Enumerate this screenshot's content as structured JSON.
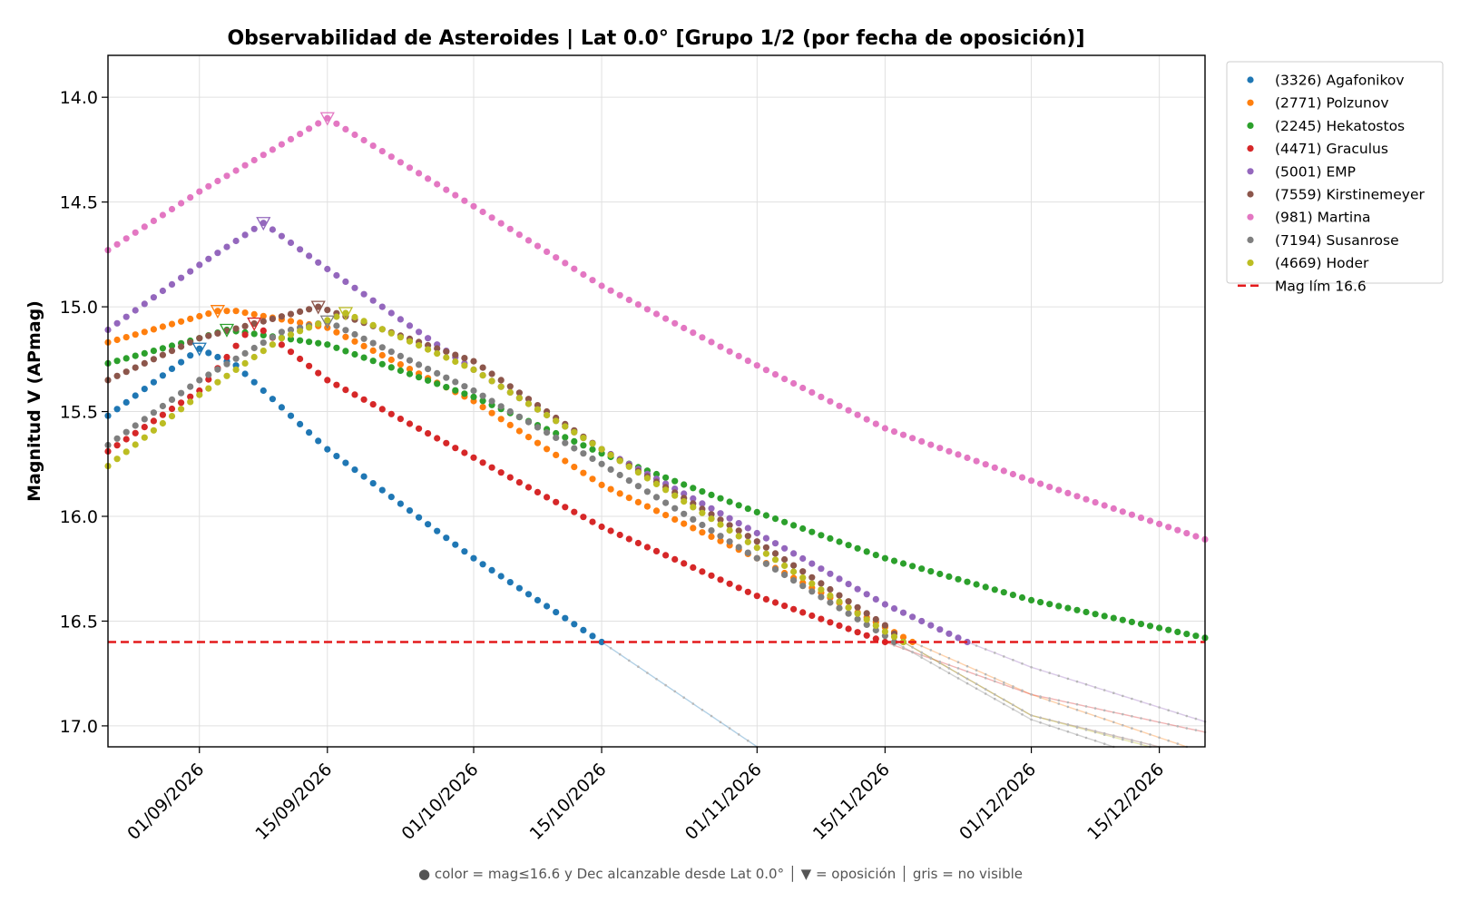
{
  "chart_data": {
    "type": "scatter",
    "title": "Observabilidad de Asteroides  |  Lat 0.0°  [Grupo 1/2 (por fecha de oposición)]",
    "xlabel": "",
    "ylabel": "Magnitud V (APmag)",
    "x_start": "2026-08-22",
    "x_end": "2026-12-20",
    "x_ticks": [
      "01/09/2026",
      "15/09/2026",
      "01/10/2026",
      "15/10/2026",
      "01/11/2026",
      "15/11/2026",
      "01/12/2026",
      "15/12/2026"
    ],
    "ylim": [
      17.1,
      13.8
    ],
    "y_inverted": true,
    "y_ticks": [
      "14.0",
      "14.5",
      "15.0",
      "15.5",
      "16.0",
      "16.5",
      "17.0"
    ],
    "grid": true,
    "legend_position": "outside-right",
    "limit_line": {
      "label": "Mag lím 16.6",
      "value": 16.6,
      "color": "#e31a1c"
    },
    "footnote": "● color = mag≤16.6 y Dec alcanzable desde Lat 0.0°  │  ▼ = oposición  │  gris = no visible",
    "series": [
      {
        "name": "(3326) Agafonikov",
        "color": "#1f77b4",
        "points": [
          [
            "2026-08-22",
            15.52
          ],
          [
            "2026-09-01",
            15.2
          ],
          [
            "2026-09-05",
            15.28
          ],
          [
            "2026-09-15",
            15.68
          ],
          [
            "2026-10-01",
            16.2
          ],
          [
            "2026-10-15",
            16.6
          ],
          [
            "2026-11-01",
            17.1
          ]
        ],
        "opposition": [
          "2026-09-01",
          15.2
        ]
      },
      {
        "name": "(2771) Polzunov",
        "color": "#ff7f0e",
        "points": [
          [
            "2026-08-22",
            15.17
          ],
          [
            "2026-09-03",
            15.02
          ],
          [
            "2026-09-05",
            15.02
          ],
          [
            "2026-09-15",
            15.1
          ],
          [
            "2026-10-01",
            15.45
          ],
          [
            "2026-10-15",
            15.85
          ],
          [
            "2026-11-01",
            16.2
          ],
          [
            "2026-11-18",
            16.6
          ],
          [
            "2026-12-01",
            16.85
          ],
          [
            "2026-12-18",
            17.1
          ]
        ],
        "opposition": [
          "2026-09-03",
          15.02
        ]
      },
      {
        "name": "(2245) Hekatostos",
        "color": "#2ca02c",
        "points": [
          [
            "2026-08-22",
            15.27
          ],
          [
            "2026-09-01",
            15.15
          ],
          [
            "2026-09-04",
            15.11
          ],
          [
            "2026-09-15",
            15.18
          ],
          [
            "2026-10-01",
            15.43
          ],
          [
            "2026-10-15",
            15.7
          ],
          [
            "2026-11-01",
            15.98
          ],
          [
            "2026-11-15",
            16.2
          ],
          [
            "2026-12-01",
            16.4
          ],
          [
            "2026-12-20",
            16.58
          ]
        ],
        "opposition": [
          "2026-09-04",
          15.11
        ]
      },
      {
        "name": "(4471) Graculus",
        "color": "#d62728",
        "points": [
          [
            "2026-08-22",
            15.69
          ],
          [
            "2026-09-01",
            15.4
          ],
          [
            "2026-09-07",
            15.08
          ],
          [
            "2026-09-15",
            15.35
          ],
          [
            "2026-10-01",
            15.72
          ],
          [
            "2026-10-15",
            16.05
          ],
          [
            "2026-11-01",
            16.38
          ],
          [
            "2026-11-15",
            16.6
          ],
          [
            "2026-12-01",
            16.85
          ],
          [
            "2026-12-20",
            17.03
          ]
        ],
        "opposition": [
          "2026-09-07",
          15.08
        ]
      },
      {
        "name": "(5001) EMP",
        "color": "#9467bd",
        "points": [
          [
            "2026-08-22",
            15.11
          ],
          [
            "2026-09-01",
            14.8
          ],
          [
            "2026-09-08",
            14.6
          ],
          [
            "2026-09-15",
            14.82
          ],
          [
            "2026-10-01",
            15.3
          ],
          [
            "2026-10-15",
            15.68
          ],
          [
            "2026-11-01",
            16.08
          ],
          [
            "2026-11-15",
            16.42
          ],
          [
            "2026-11-24",
            16.6
          ],
          [
            "2026-12-01",
            16.72
          ],
          [
            "2026-12-20",
            16.98
          ]
        ],
        "opposition": [
          "2026-09-08",
          14.6
        ]
      },
      {
        "name": "(7559) Kirstinemeyer",
        "color": "#8c564b",
        "points": [
          [
            "2026-08-22",
            15.35
          ],
          [
            "2026-09-01",
            15.15
          ],
          [
            "2026-09-14",
            15.0
          ],
          [
            "2026-10-01",
            15.26
          ],
          [
            "2026-10-15",
            15.68
          ],
          [
            "2026-11-01",
            16.12
          ],
          [
            "2026-11-15",
            16.52
          ],
          [
            "2026-11-17",
            16.6
          ],
          [
            "2026-12-01",
            16.95
          ],
          [
            "2026-12-15",
            17.1
          ]
        ],
        "opposition": [
          "2026-09-14",
          15.0
        ]
      },
      {
        "name": "(981) Martina",
        "color": "#e377c2",
        "points": [
          [
            "2026-08-22",
            14.73
          ],
          [
            "2026-09-01",
            14.45
          ],
          [
            "2026-09-15",
            14.1
          ],
          [
            "2026-10-01",
            14.52
          ],
          [
            "2026-10-15",
            14.9
          ],
          [
            "2026-11-01",
            15.28
          ],
          [
            "2026-11-15",
            15.58
          ],
          [
            "2026-12-01",
            15.83
          ],
          [
            "2026-12-20",
            16.11
          ]
        ],
        "opposition": [
          "2026-09-15",
          14.1
        ]
      },
      {
        "name": "(7194) Susanrose",
        "color": "#7f7f7f",
        "points": [
          [
            "2026-08-22",
            15.66
          ],
          [
            "2026-09-01",
            15.35
          ],
          [
            "2026-09-10",
            15.12
          ],
          [
            "2026-09-15",
            15.07
          ],
          [
            "2026-10-01",
            15.4
          ],
          [
            "2026-10-15",
            15.75
          ],
          [
            "2026-11-01",
            16.2
          ],
          [
            "2026-11-15",
            16.57
          ],
          [
            "2026-11-16",
            16.6
          ],
          [
            "2026-12-01",
            16.97
          ],
          [
            "2026-12-10",
            17.1
          ]
        ],
        "opposition": [
          "2026-09-15",
          15.07
        ]
      },
      {
        "name": "(4669) Hoder",
        "color": "#bcbd22",
        "points": [
          [
            "2026-08-22",
            15.76
          ],
          [
            "2026-09-01",
            15.42
          ],
          [
            "2026-09-10",
            15.15
          ],
          [
            "2026-09-17",
            15.03
          ],
          [
            "2026-10-01",
            15.3
          ],
          [
            "2026-10-15",
            15.68
          ],
          [
            "2026-11-01",
            16.15
          ],
          [
            "2026-11-15",
            16.55
          ],
          [
            "2026-11-17",
            16.6
          ],
          [
            "2026-12-01",
            16.95
          ],
          [
            "2026-12-14",
            17.1
          ]
        ],
        "opposition": [
          "2026-09-17",
          15.03
        ]
      }
    ]
  }
}
